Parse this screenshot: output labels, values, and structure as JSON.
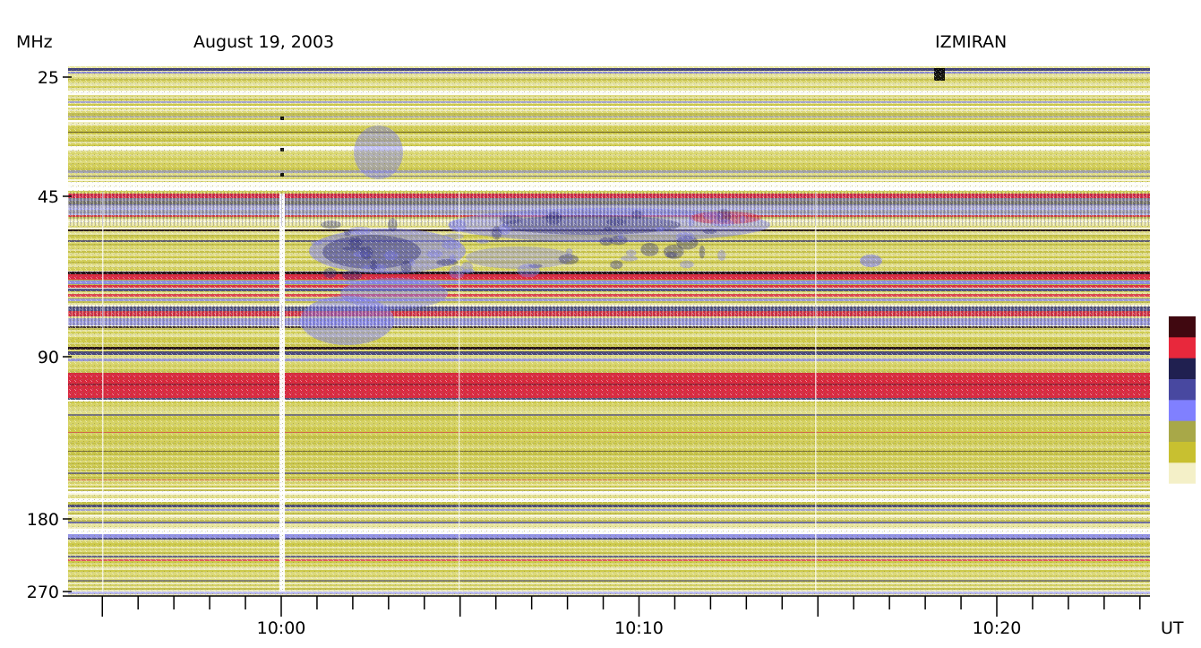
{
  "chart_data": {
    "type": "heatmap",
    "title": "August 19, 2003",
    "observatory": "IZMIRAN",
    "ylabel": "MHz",
    "xlabel": "UT",
    "y_scale": "log",
    "y_ticks": [
      25,
      45,
      90,
      180,
      270
    ],
    "y_range": [
      25,
      270
    ],
    "x_ticks": [
      "10:00",
      "10:10",
      "10:20"
    ],
    "x_range": [
      "09:54",
      "10:24"
    ],
    "colorbar": {
      "colors": [
        "#ffffff",
        "#f4f0c8",
        "#c8c030",
        "#a8a848",
        "#8080ff",
        "#4848a0",
        "#202050",
        "#e8283c",
        "#400810"
      ],
      "labels": []
    },
    "colors": {
      "bg_light": "#f8f6dc",
      "yellow": "#c9c53c",
      "blue": "#7c7cf0",
      "dark_blue": "#30307a",
      "red": "#d8203a",
      "dark": "#1c0a14"
    }
  }
}
